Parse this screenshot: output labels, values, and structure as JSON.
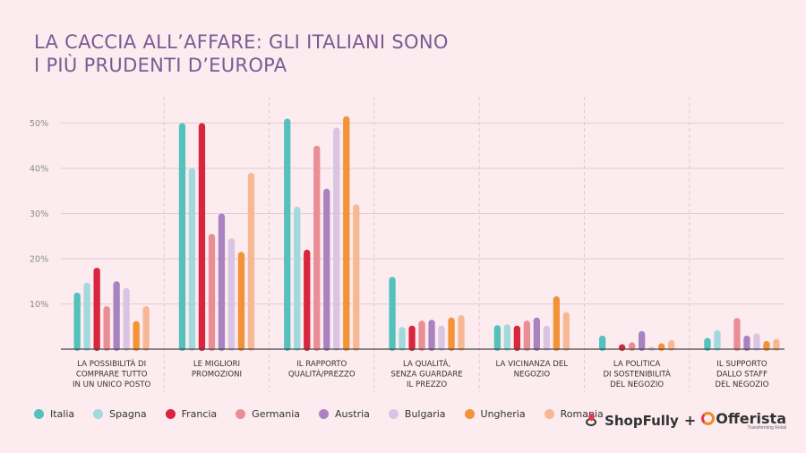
{
  "title_lines": [
    "LA CACCIA ALL’AFFARE: GLI ITALIANI SONO",
    "I PIÙ PRUDENTI D’EUROPA"
  ],
  "colors": {
    "Italia": "#55c1bd",
    "Spagna": "#a2d9dc",
    "Francia": "#d7263d",
    "Germania": "#e98e95",
    "Austria": "#a983c1",
    "Bulgaria": "#d9c5e3",
    "Ungheria": "#f39237",
    "Romania": "#f7b894"
  },
  "chart_data": {
    "type": "bar",
    "title": "LA CACCIA ALL’AFFARE: GLI ITALIANI SONO I PIÙ PRUDENTI D’EUROPA",
    "y_ticks": [
      "10%",
      "20%",
      "30%",
      "40%",
      "50%"
    ],
    "ylim": [
      0,
      52
    ],
    "grid": true,
    "legend_position": "bottom-left",
    "categories": [
      [
        "LA POSSIBILITÀ DI",
        "COMPRARE TUTTO",
        "IN UN UNICO POSTO"
      ],
      [
        "LE MIGLIORI",
        "PROMOZIONI"
      ],
      [
        "IL RAPPORTO",
        "QUALITÀ/PREZZO"
      ],
      [
        "LA QUALITÀ,",
        "SENZA GUARDARE",
        "IL PREZZO"
      ],
      [
        "LA VICINANZA DEL",
        "NEGOZIO"
      ],
      [
        "LA POLITICA",
        "DI SOSTENIBILITÀ",
        "DEL NEGOZIO"
      ],
      [
        "IL SUPPORTO",
        "DALLO STAFF",
        "DEL NEGOZIO"
      ]
    ],
    "series": [
      {
        "name": "Italia",
        "values": [
          12.5,
          50,
          51,
          16,
          5.3,
          3,
          2.5
        ]
      },
      {
        "name": "Spagna",
        "values": [
          14.7,
          40,
          31.5,
          4.9,
          5.5,
          0,
          4.2
        ]
      },
      {
        "name": "Francia",
        "values": [
          18,
          50,
          22,
          5.2,
          5.2,
          1.1,
          0
        ]
      },
      {
        "name": "Germania",
        "values": [
          9.5,
          25.5,
          45,
          6.3,
          6.3,
          1.5,
          6.9
        ]
      },
      {
        "name": "Austria",
        "values": [
          15,
          30,
          35.5,
          6.5,
          7,
          4,
          3
        ]
      },
      {
        "name": "Bulgaria",
        "values": [
          13.5,
          24.5,
          49,
          5.2,
          5.2,
          0.5,
          3.5
        ]
      },
      {
        "name": "Ungheria",
        "values": [
          6.2,
          21.5,
          51.5,
          7,
          11.7,
          1.3,
          1.8
        ]
      },
      {
        "name": "Romania",
        "values": [
          9.5,
          39,
          32,
          7.5,
          8.2,
          2,
          2.3
        ]
      }
    ]
  },
  "logos": {
    "brand1": "ShopFully",
    "plus": "+",
    "brand2": "Offerista",
    "tagline": "Transforming Retail"
  }
}
